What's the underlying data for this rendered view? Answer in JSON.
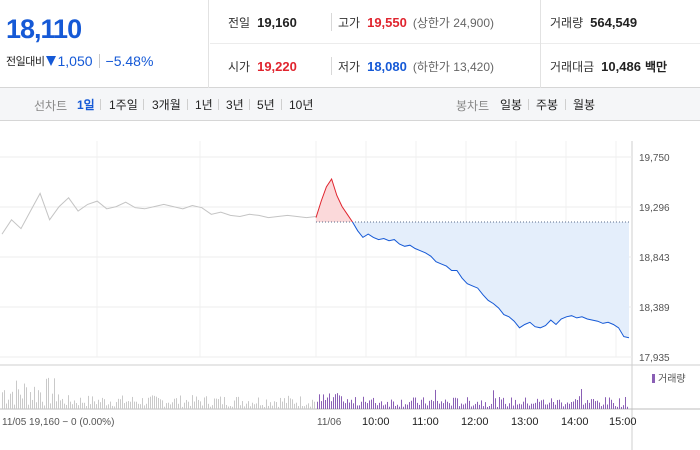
{
  "summary": {
    "price": "18,110",
    "change_label": "전일대비",
    "change_value": "1,050",
    "change_rate": "−5.48%"
  },
  "stats": {
    "prev_close": {
      "label": "전일",
      "value": "19,160"
    },
    "high": {
      "label": "고가",
      "value": "19,550",
      "sub": "(상한가 24,900)"
    },
    "volume": {
      "label": "거래량",
      "value": "564,549"
    },
    "open": {
      "label": "시가",
      "value": "19,220"
    },
    "low": {
      "label": "저가",
      "value": "18,080",
      "sub": "(하한가 13,420)"
    },
    "amount": {
      "label": "거래대금",
      "value": "10,486",
      "unit": "백만"
    }
  },
  "toolbar": {
    "line_label": "선차트",
    "line_periods": [
      "1일",
      "1주일",
      "3개월",
      "1년",
      "3년",
      "5년",
      "10년"
    ],
    "active_period": "1일",
    "candle_label": "봉차트",
    "candle_periods": [
      "일봉",
      "주봉",
      "월봉"
    ]
  },
  "colors": {
    "rise": "#e0242e",
    "fall": "#1559d6",
    "fall_fill": "#e4eefb",
    "rise_fill": "#fbd9da",
    "prev_day_line": "#c4c4c4",
    "volume_bar": "#8a5fb5"
  },
  "chart_data": {
    "type": "line",
    "y_ticks": [
      "19,750",
      "19,296",
      "18,843",
      "18,389",
      "17,935"
    ],
    "ylim": [
      17935,
      19750
    ],
    "reference_value": 19160,
    "x_labels": [
      "11/05",
      "11/06",
      "10:00",
      "11:00",
      "12:00",
      "13:00",
      "14:00",
      "15:00"
    ],
    "prev_day_info": "11/05  19,160 − 0 (0.00%)",
    "volume_legend": "거래량",
    "prev_day_series": [
      19050,
      19180,
      19100,
      19260,
      19420,
      19180,
      19300,
      19380,
      19260,
      19320,
      19350,
      19280,
      19300,
      19340,
      19290,
      19280,
      19300,
      19320,
      19300,
      19280,
      19310,
      19290,
      19230,
      19250,
      19220,
      19210,
      19230,
      19220,
      19200,
      19210,
      19220,
      19210,
      19200,
      19210
    ],
    "today_series": [
      19200,
      19350,
      19480,
      19550,
      19400,
      19300,
      19230,
      19160,
      19080,
      19020,
      19050,
      19020,
      19000,
      19010,
      18990,
      19000,
      18960,
      18940,
      18950,
      18920,
      18900,
      18880,
      18850,
      18800,
      18780,
      18760,
      18720,
      18720,
      18650,
      18600,
      18580,
      18560,
      18500,
      18450,
      18420,
      18380,
      18320,
      18300,
      18260,
      18200,
      18230,
      18250,
      18210,
      18200,
      18220,
      18270,
      18230,
      18280,
      18300,
      18310,
      18290,
      18300,
      18280,
      18270,
      18260,
      18240,
      18250,
      18230,
      18200,
      18120,
      18110
    ]
  }
}
